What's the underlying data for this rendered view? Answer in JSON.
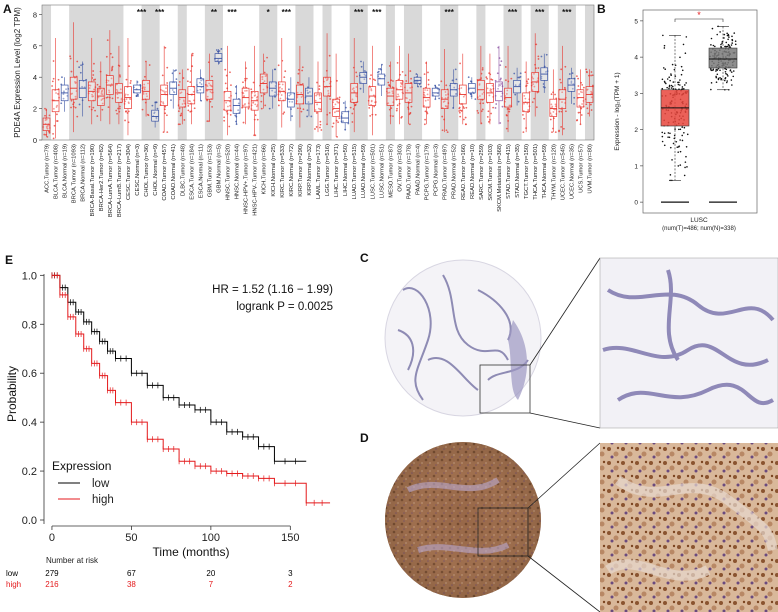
{
  "panels": {
    "a": "A",
    "b": "B",
    "c": "C",
    "d": "D",
    "e": "E"
  },
  "chart_data": [
    {
      "panel": "A",
      "type": "box",
      "ylabel": "PDE4A Expression Level (log2 TPM)",
      "yticks": [
        0,
        2,
        4,
        6,
        8
      ],
      "ylim": [
        0,
        8.6
      ],
      "categories": [
        {
          "label": "ACC.Tumor (n=79)",
          "group": "tumor",
          "median": 1.0,
          "q1": 0.6,
          "q3": 1.4,
          "lo": 0.2,
          "hi": 2.0,
          "sig": ""
        },
        {
          "label": "BLCA.Tumor (n=408)",
          "group": "tumor",
          "median": 2.5,
          "q1": 1.8,
          "q3": 3.2,
          "lo": 0.1,
          "hi": 6.5,
          "sig": ""
        },
        {
          "label": "BLCA.Normal (n=19)",
          "group": "normal",
          "median": 3.0,
          "q1": 2.5,
          "q3": 3.5,
          "lo": 1.8,
          "hi": 4.0,
          "sig": ""
        },
        {
          "label": "BRCA.Tumor (n=1093)",
          "group": "tumor",
          "median": 3.3,
          "q1": 2.6,
          "q3": 4.0,
          "lo": 0.5,
          "hi": 7.5,
          "sig": ""
        },
        {
          "label": "BRCA.Normal (n=112)",
          "group": "normal",
          "median": 3.3,
          "q1": 2.7,
          "q3": 3.8,
          "lo": 1.5,
          "hi": 5.0,
          "sig": ""
        },
        {
          "label": "BRCA-Basal.Tumor (n=190)",
          "group": "tumor",
          "median": 3.1,
          "q1": 2.5,
          "q3": 3.7,
          "lo": 1.0,
          "hi": 6.5,
          "sig": ""
        },
        {
          "label": "BRCA-Her2.Tumor (n=82)",
          "group": "tumor",
          "median": 2.8,
          "q1": 2.2,
          "q3": 3.3,
          "lo": 1.2,
          "hi": 5.0,
          "sig": ""
        },
        {
          "label": "BRCA-LumA.Tumor (n=564)",
          "group": "tumor",
          "median": 3.5,
          "q1": 2.9,
          "q3": 4.1,
          "lo": 1.0,
          "hi": 7.0,
          "sig": ""
        },
        {
          "label": "BRCA-LumB.Tumor (n=217)",
          "group": "tumor",
          "median": 3.0,
          "q1": 2.4,
          "q3": 3.6,
          "lo": 1.0,
          "hi": 6.0,
          "sig": ""
        },
        {
          "label": "CESC.Tumor (n=304)",
          "group": "tumor",
          "median": 2.7,
          "q1": 2.0,
          "q3": 3.4,
          "lo": 0.3,
          "hi": 6.5,
          "sig": ""
        },
        {
          "label": "CESC.Normal (n=3)",
          "group": "normal",
          "median": 3.2,
          "q1": 3.0,
          "q3": 3.5,
          "lo": 2.8,
          "hi": 3.8,
          "sig": ""
        },
        {
          "label": "CHOL.Tumor (n=36)",
          "group": "tumor",
          "median": 3.1,
          "q1": 2.6,
          "q3": 3.8,
          "lo": 1.5,
          "hi": 5.0,
          "sig": "***"
        },
        {
          "label": "CHOL.Normal (n=9)",
          "group": "normal",
          "median": 1.5,
          "q1": 1.2,
          "q3": 1.9,
          "lo": 0.8,
          "hi": 2.4,
          "sig": ""
        },
        {
          "label": "COAD.Tumor (n=457)",
          "group": "tumor",
          "median": 2.9,
          "q1": 2.2,
          "q3": 3.5,
          "lo": 0.5,
          "hi": 6.0,
          "sig": "***"
        },
        {
          "label": "COAD.Normal (n=41)",
          "group": "normal",
          "median": 3.3,
          "q1": 2.9,
          "q3": 3.7,
          "lo": 2.0,
          "hi": 4.5,
          "sig": ""
        },
        {
          "label": "DLBC.Tumor (n=48)",
          "group": "tumor",
          "median": 2.7,
          "q1": 2.1,
          "q3": 3.2,
          "lo": 1.0,
          "hi": 4.5,
          "sig": ""
        },
        {
          "label": "ESCA.Tumor (n=184)",
          "group": "tumor",
          "median": 2.9,
          "q1": 2.3,
          "q3": 3.4,
          "lo": 1.0,
          "hi": 5.5,
          "sig": ""
        },
        {
          "label": "ESCA.Normal (n=11)",
          "group": "normal",
          "median": 3.4,
          "q1": 3.0,
          "q3": 3.9,
          "lo": 2.5,
          "hi": 4.5,
          "sig": ""
        },
        {
          "label": "GBM.Tumor (n=153)",
          "group": "tumor",
          "median": 3.2,
          "q1": 2.6,
          "q3": 3.8,
          "lo": 1.2,
          "hi": 5.5,
          "sig": ""
        },
        {
          "label": "GBM.Normal (n=5)",
          "group": "normal",
          "median": 5.2,
          "q1": 5.0,
          "q3": 5.5,
          "lo": 4.8,
          "hi": 5.8,
          "sig": "**"
        },
        {
          "label": "HNSC.Tumor (n=520)",
          "group": "tumor",
          "median": 2.5,
          "q1": 1.9,
          "q3": 3.1,
          "lo": 0.3,
          "hi": 6.0,
          "sig": ""
        },
        {
          "label": "HNSC.Normal (n=44)",
          "group": "normal",
          "median": 2.2,
          "q1": 1.7,
          "q3": 2.6,
          "lo": 1.0,
          "hi": 3.5,
          "sig": "***"
        },
        {
          "label": "HNSC-HPV+.Tumor (n=97)",
          "group": "tumor",
          "median": 2.7,
          "q1": 2.1,
          "q3": 3.3,
          "lo": 1.0,
          "hi": 5.0,
          "sig": ""
        },
        {
          "label": "HNSC-HPV-.Tumor (n=421)",
          "group": "tumor",
          "median": 2.5,
          "q1": 1.9,
          "q3": 3.1,
          "lo": 0.3,
          "hi": 6.0,
          "sig": ""
        },
        {
          "label": "KICH.Tumor (n=66)",
          "group": "tumor",
          "median": 3.6,
          "q1": 3.0,
          "q3": 4.2,
          "lo": 2.0,
          "hi": 5.5,
          "sig": ""
        },
        {
          "label": "KICH.Normal (n=25)",
          "group": "normal",
          "median": 3.3,
          "q1": 2.8,
          "q3": 3.7,
          "lo": 2.0,
          "hi": 4.5,
          "sig": "*"
        },
        {
          "label": "KIRC.Tumor (n=533)",
          "group": "tumor",
          "median": 3.1,
          "q1": 2.5,
          "q3": 3.7,
          "lo": 0.8,
          "hi": 6.5,
          "sig": ""
        },
        {
          "label": "KIRC.Normal (n=72)",
          "group": "normal",
          "median": 2.6,
          "q1": 2.1,
          "q3": 3.0,
          "lo": 1.2,
          "hi": 4.0,
          "sig": "***"
        },
        {
          "label": "KIRP.Tumor (n=290)",
          "group": "tumor",
          "median": 2.9,
          "q1": 2.3,
          "q3": 3.5,
          "lo": 0.8,
          "hi": 6.0,
          "sig": ""
        },
        {
          "label": "KIRP.Normal (n=32)",
          "group": "normal",
          "median": 2.8,
          "q1": 2.3,
          "q3": 3.3,
          "lo": 1.5,
          "hi": 4.0,
          "sig": ""
        },
        {
          "label": "LAML.Tumor (n=173)",
          "group": "tumor",
          "median": 2.4,
          "q1": 1.8,
          "q3": 3.0,
          "lo": 0.5,
          "hi": 5.0,
          "sig": ""
        },
        {
          "label": "LGG.Tumor (n=516)",
          "group": "tumor",
          "median": 3.4,
          "q1": 2.8,
          "q3": 4.0,
          "lo": 1.0,
          "hi": 6.8,
          "sig": ""
        },
        {
          "label": "LIHC.Tumor (n=371)",
          "group": "tumor",
          "median": 2.0,
          "q1": 1.5,
          "q3": 2.6,
          "lo": 0.2,
          "hi": 5.5,
          "sig": ""
        },
        {
          "label": "LIHC.Normal (n=50)",
          "group": "normal",
          "median": 1.4,
          "q1": 1.1,
          "q3": 1.8,
          "lo": 0.6,
          "hi": 2.5,
          "sig": ""
        },
        {
          "label": "LUAD.Tumor (n=515)",
          "group": "tumor",
          "median": 3.0,
          "q1": 2.4,
          "q3": 3.6,
          "lo": 0.5,
          "hi": 6.5,
          "sig": ""
        },
        {
          "label": "LUAD.Normal (n=59)",
          "group": "normal",
          "median": 4.0,
          "q1": 3.6,
          "q3": 4.3,
          "lo": 3.0,
          "hi": 5.0,
          "sig": "***"
        },
        {
          "label": "LUSC.Tumor (n=501)",
          "group": "tumor",
          "median": 2.8,
          "q1": 2.2,
          "q3": 3.4,
          "lo": 0.3,
          "hi": 6.0,
          "sig": ""
        },
        {
          "label": "LUSC.Normal (n=51)",
          "group": "normal",
          "median": 3.9,
          "q1": 3.5,
          "q3": 4.2,
          "lo": 2.8,
          "hi": 4.8,
          "sig": "***"
        },
        {
          "label": "MESO.Tumor (n=87)",
          "group": "tumor",
          "median": 2.8,
          "q1": 2.2,
          "q3": 3.3,
          "lo": 1.0,
          "hi": 5.0,
          "sig": ""
        },
        {
          "label": "OV.Tumor (n=303)",
          "group": "tumor",
          "median": 3.2,
          "q1": 2.6,
          "q3": 3.8,
          "lo": 1.0,
          "hi": 6.0,
          "sig": ""
        },
        {
          "label": "PAAD.Tumor (n=178)",
          "group": "tumor",
          "median": 3.0,
          "q1": 2.4,
          "q3": 3.6,
          "lo": 1.0,
          "hi": 5.5,
          "sig": ""
        },
        {
          "label": "PAAD.Normal (n=4)",
          "group": "normal",
          "median": 3.8,
          "q1": 3.6,
          "q3": 4.0,
          "lo": 3.4,
          "hi": 4.2,
          "sig": ""
        },
        {
          "label": "PCPG.Tumor (n=179)",
          "group": "tumor",
          "median": 2.7,
          "q1": 2.1,
          "q3": 3.3,
          "lo": 1.0,
          "hi": 5.0,
          "sig": ""
        },
        {
          "label": "PCPG.Normal (n=3)",
          "group": "normal",
          "median": 3.0,
          "q1": 2.8,
          "q3": 3.3,
          "lo": 2.6,
          "hi": 3.5,
          "sig": ""
        },
        {
          "label": "PRAD.Tumor (n=497)",
          "group": "tumor",
          "median": 2.6,
          "q1": 2.0,
          "q3": 3.2,
          "lo": 0.5,
          "hi": 5.8,
          "sig": ""
        },
        {
          "label": "PRAD.Normal (n=52)",
          "group": "normal",
          "median": 3.2,
          "q1": 2.8,
          "q3": 3.6,
          "lo": 2.0,
          "hi": 4.5,
          "sig": "***"
        },
        {
          "label": "READ.Tumor (n=166)",
          "group": "tumor",
          "median": 2.9,
          "q1": 2.3,
          "q3": 3.5,
          "lo": 1.0,
          "hi": 5.5,
          "sig": ""
        },
        {
          "label": "READ.Normal (n=10)",
          "group": "normal",
          "median": 3.3,
          "q1": 3.0,
          "q3": 3.6,
          "lo": 2.6,
          "hi": 4.0,
          "sig": ""
        },
        {
          "label": "SARC.Tumor (n=259)",
          "group": "tumor",
          "median": 3.2,
          "q1": 2.6,
          "q3": 3.8,
          "lo": 1.0,
          "hi": 6.0,
          "sig": ""
        },
        {
          "label": "SKCM.Tumor (n=103)",
          "group": "tumor",
          "median": 3.0,
          "q1": 2.4,
          "q3": 3.6,
          "lo": 1.0,
          "hi": 5.5,
          "sig": ""
        },
        {
          "label": "SKCM.Metastasis (n=368)",
          "group": "metastasis",
          "median": 3.1,
          "q1": 2.5,
          "q3": 3.7,
          "lo": 1.0,
          "hi": 6.0,
          "sig": ""
        },
        {
          "label": "STAD.Tumor (n=415)",
          "group": "tumor",
          "median": 2.7,
          "q1": 2.1,
          "q3": 3.3,
          "lo": 0.5,
          "hi": 6.0,
          "sig": ""
        },
        {
          "label": "STAD.Normal (n=35)",
          "group": "normal",
          "median": 3.4,
          "q1": 3.0,
          "q3": 3.8,
          "lo": 2.2,
          "hi": 4.6,
          "sig": "***"
        },
        {
          "label": "TGCT.Tumor (n=150)",
          "group": "tumor",
          "median": 2.4,
          "q1": 1.8,
          "q3": 3.0,
          "lo": 0.5,
          "hi": 5.0,
          "sig": ""
        },
        {
          "label": "THCA.Tumor (n=501)",
          "group": "tumor",
          "median": 3.7,
          "q1": 3.1,
          "q3": 4.3,
          "lo": 1.5,
          "hi": 6.8,
          "sig": ""
        },
        {
          "label": "THCA.Normal (n=59)",
          "group": "normal",
          "median": 4.2,
          "q1": 3.8,
          "q3": 4.6,
          "lo": 3.0,
          "hi": 5.5,
          "sig": "***"
        },
        {
          "label": "THYM.Tumor (n=120)",
          "group": "tumor",
          "median": 2.0,
          "q1": 1.5,
          "q3": 2.6,
          "lo": 0.5,
          "hi": 4.5,
          "sig": ""
        },
        {
          "label": "UCEC.Tumor (n=545)",
          "group": "tumor",
          "median": 2.6,
          "q1": 2.0,
          "q3": 3.2,
          "lo": 0.3,
          "hi": 6.0,
          "sig": ""
        },
        {
          "label": "UCEC.Normal (n=35)",
          "group": "normal",
          "median": 3.5,
          "q1": 3.1,
          "q3": 3.9,
          "lo": 2.3,
          "hi": 4.6,
          "sig": "***"
        },
        {
          "label": "UCS.Tumor (n=57)",
          "group": "tumor",
          "median": 2.7,
          "q1": 2.1,
          "q3": 3.2,
          "lo": 1.0,
          "hi": 4.5,
          "sig": ""
        },
        {
          "label": "UVM.Tumor (n=80)",
          "group": "tumor",
          "median": 2.9,
          "q1": 2.4,
          "q3": 3.4,
          "lo": 1.5,
          "hi": 4.5,
          "sig": ""
        }
      ],
      "colors": {
        "tumor": "#e8352e",
        "normal": "#3a53a4",
        "metastasis": "#8a4fa0",
        "band": "#d9d9d9"
      }
    },
    {
      "panel": "B",
      "type": "box",
      "ylabel": "Expression - log₂(TPM + 1)",
      "yticks": [
        0,
        1,
        2,
        3,
        4,
        5
      ],
      "ylim": [
        -0.3,
        5.3
      ],
      "xlabel": "LUSC",
      "xsub": "(num(T)=486; num(N)=338)",
      "sig": "*",
      "boxes": [
        {
          "name": "Tumor",
          "median": 2.6,
          "q1": 2.1,
          "q3": 3.1,
          "lo": 0.6,
          "hi": 4.6,
          "color": "#e8453c"
        },
        {
          "name": "Normal",
          "median": 3.95,
          "q1": 3.7,
          "q3": 4.25,
          "lo": 3.1,
          "hi": 4.85,
          "color": "#7a7a7a"
        }
      ]
    },
    {
      "panel": "E",
      "type": "line",
      "title": "",
      "xlabel": "Time (months)",
      "ylabel": "Probability",
      "xlim": [
        -5,
        180
      ],
      "ylim": [
        0,
        1.03
      ],
      "xticks": [
        0,
        50,
        100,
        150
      ],
      "yticks": [
        0.0,
        0.2,
        0.4,
        0.6,
        0.8,
        1.0
      ],
      "hr_text": "HR = 1.52 (1.16 − 1.99)",
      "p_text": "logrank P = 0.0025",
      "legend_title": "Expression",
      "series": [
        {
          "name": "low",
          "color": "#000000",
          "x": [
            0,
            5,
            10,
            15,
            20,
            25,
            30,
            35,
            40,
            50,
            60,
            70,
            80,
            90,
            100,
            110,
            120,
            130,
            140,
            160
          ],
          "y": [
            1.0,
            0.95,
            0.89,
            0.85,
            0.81,
            0.77,
            0.73,
            0.69,
            0.66,
            0.6,
            0.55,
            0.5,
            0.47,
            0.45,
            0.4,
            0.36,
            0.34,
            0.3,
            0.24,
            0.24
          ]
        },
        {
          "name": "high",
          "color": "#e41a1c",
          "x": [
            0,
            5,
            10,
            15,
            20,
            25,
            30,
            35,
            40,
            50,
            60,
            70,
            80,
            90,
            100,
            110,
            120,
            130,
            140,
            160,
            175
          ],
          "y": [
            1.0,
            0.92,
            0.83,
            0.76,
            0.7,
            0.64,
            0.59,
            0.53,
            0.48,
            0.4,
            0.33,
            0.29,
            0.24,
            0.22,
            0.2,
            0.19,
            0.18,
            0.17,
            0.15,
            0.07,
            0.07
          ]
        }
      ],
      "risk_title": "Number at risk",
      "risk_rows": [
        {
          "name": "low",
          "color": "#000000",
          "counts": [
            "279",
            "67",
            "20",
            "3"
          ]
        },
        {
          "name": "high",
          "color": "#e41a1c",
          "counts": [
            "216",
            "38",
            "7",
            "2"
          ]
        }
      ]
    }
  ]
}
